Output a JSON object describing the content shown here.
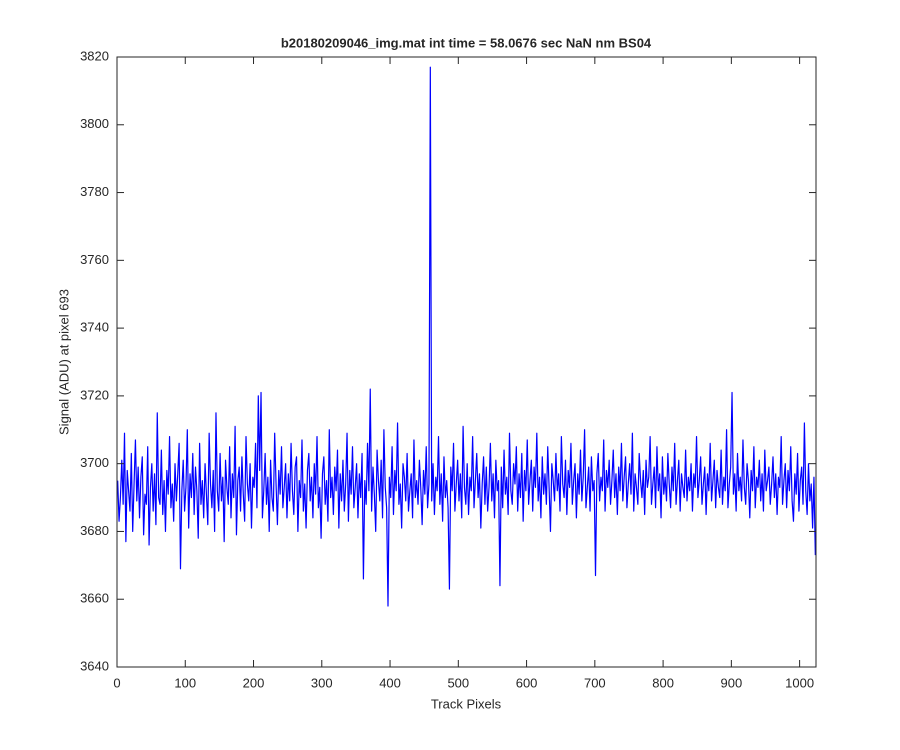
{
  "chart_data": {
    "type": "line",
    "title": "b20180209046_img.mat int time = 58.0676 sec  NaN nm BS04",
    "x_label": "Track Pixels",
    "y_label": "Signal (ADU) at pixel 693",
    "color": "#0000ff",
    "xlim": [
      0,
      1024
    ],
    "ylim": [
      3640,
      3820
    ],
    "xticks": [
      0,
      100,
      200,
      300,
      400,
      500,
      600,
      700,
      800,
      900,
      1000
    ],
    "yticks": [
      3640,
      3660,
      3680,
      3700,
      3720,
      3740,
      3760,
      3780,
      3800,
      3820
    ],
    "x": [
      1,
      3,
      5,
      7,
      9,
      11,
      13,
      15,
      17,
      19,
      21,
      23,
      25,
      27,
      29,
      31,
      33,
      35,
      37,
      39,
      41,
      43,
      45,
      47,
      49,
      51,
      53,
      55,
      57,
      59,
      61,
      63,
      65,
      67,
      69,
      71,
      73,
      75,
      77,
      79,
      81,
      83,
      85,
      87,
      89,
      91,
      93,
      95,
      97,
      99,
      101,
      103,
      105,
      107,
      109,
      111,
      113,
      115,
      117,
      119,
      121,
      123,
      125,
      127,
      129,
      131,
      133,
      135,
      137,
      139,
      141,
      143,
      145,
      147,
      149,
      151,
      153,
      155,
      157,
      159,
      161,
      163,
      165,
      167,
      169,
      171,
      173,
      175,
      177,
      179,
      181,
      183,
      185,
      187,
      189,
      191,
      193,
      195,
      197,
      199,
      201,
      203,
      205,
      207,
      209,
      211,
      213,
      215,
      217,
      219,
      221,
      223,
      225,
      227,
      229,
      231,
      233,
      235,
      237,
      239,
      241,
      243,
      245,
      247,
      249,
      251,
      253,
      255,
      257,
      259,
      261,
      263,
      265,
      267,
      269,
      271,
      273,
      275,
      277,
      279,
      281,
      283,
      285,
      287,
      289,
      291,
      293,
      295,
      297,
      299,
      301,
      303,
      305,
      307,
      309,
      311,
      313,
      315,
      317,
      319,
      321,
      323,
      325,
      327,
      329,
      331,
      333,
      335,
      337,
      339,
      341,
      343,
      345,
      347,
      349,
      351,
      353,
      355,
      357,
      359,
      361,
      363,
      365,
      367,
      369,
      371,
      373,
      375,
      377,
      379,
      381,
      383,
      385,
      387,
      389,
      391,
      393,
      395,
      397,
      399,
      401,
      403,
      405,
      407,
      409,
      411,
      413,
      415,
      417,
      419,
      421,
      423,
      425,
      427,
      429,
      431,
      433,
      435,
      437,
      439,
      441,
      443,
      445,
      447,
      449,
      451,
      453,
      455,
      457,
      459,
      461,
      463,
      465,
      467,
      469,
      471,
      473,
      475,
      477,
      479,
      481,
      483,
      485,
      487,
      489,
      491,
      493,
      495,
      497,
      499,
      501,
      503,
      505,
      507,
      509,
      511,
      513,
      515,
      517,
      519,
      521,
      523,
      525,
      527,
      529,
      531,
      533,
      535,
      537,
      539,
      541,
      543,
      545,
      547,
      549,
      551,
      553,
      555,
      557,
      559,
      561,
      563,
      565,
      567,
      569,
      571,
      573,
      575,
      577,
      579,
      581,
      583,
      585,
      587,
      589,
      591,
      593,
      595,
      597,
      599,
      601,
      603,
      605,
      607,
      609,
      611,
      613,
      615,
      617,
      619,
      621,
      623,
      625,
      627,
      629,
      631,
      633,
      635,
      637,
      639,
      641,
      643,
      645,
      647,
      649,
      651,
      653,
      655,
      657,
      659,
      661,
      663,
      665,
      667,
      669,
      671,
      673,
      675,
      677,
      679,
      681,
      683,
      685,
      687,
      689,
      691,
      693,
      695,
      697,
      699,
      701,
      703,
      705,
      707,
      709,
      711,
      713,
      715,
      717,
      719,
      721,
      723,
      725,
      727,
      729,
      731,
      733,
      735,
      737,
      739,
      741,
      743,
      745,
      747,
      749,
      751,
      753,
      755,
      757,
      759,
      761,
      763,
      765,
      767,
      769,
      771,
      773,
      775,
      777,
      779,
      781,
      783,
      785,
      787,
      789,
      791,
      793,
      795,
      797,
      799,
      801,
      803,
      805,
      807,
      809,
      811,
      813,
      815,
      817,
      819,
      821,
      823,
      825,
      827,
      829,
      831,
      833,
      835,
      837,
      839,
      841,
      843,
      845,
      847,
      849,
      851,
      853,
      855,
      857,
      859,
      861,
      863,
      865,
      867,
      869,
      871,
      873,
      875,
      877,
      879,
      881,
      883,
      885,
      887,
      889,
      891,
      893,
      895,
      897,
      899,
      901,
      903,
      905,
      907,
      909,
      911,
      913,
      915,
      917,
      919,
      921,
      923,
      925,
      927,
      929,
      931,
      933,
      935,
      937,
      939,
      941,
      943,
      945,
      947,
      949,
      951,
      953,
      955,
      957,
      959,
      961,
      963,
      965,
      967,
      969,
      971,
      973,
      975,
      977,
      979,
      981,
      983,
      985,
      987,
      989,
      991,
      993,
      995,
      997,
      999,
      1001,
      1003,
      1005,
      1007,
      1009,
      1011,
      1013,
      1015,
      1017,
      1019,
      1021,
      1023
    ],
    "values": [
      3695,
      3683,
      3690,
      3701,
      3688,
      3709,
      3677,
      3698,
      3692,
      3686,
      3703,
      3680,
      3694,
      3707,
      3689,
      3699,
      3684,
      3696,
      3702,
      3679,
      3691,
      3688,
      3705,
      3676,
      3693,
      3700,
      3686,
      3697,
      3682,
      3715,
      3690,
      3688,
      3704,
      3685,
      3695,
      3680,
      3698,
      3691,
      3708,
      3687,
      3694,
      3683,
      3700,
      3689,
      3697,
      3706,
      3669,
      3692,
      3701,
      3686,
      3693,
      3710,
      3681,
      3697,
      3690,
      3703,
      3685,
      3699,
      3692,
      3678,
      3706,
      3688,
      3695,
      3684,
      3700,
      3691,
      3682,
      3709,
      3694,
      3687,
      3698,
      3680,
      3715,
      3692,
      3686,
      3703,
      3689,
      3696,
      3677,
      3701,
      3693,
      3688,
      3705,
      3684,
      3697,
      3690,
      3711,
      3679,
      3695,
      3699,
      3686,
      3702,
      3691,
      3683,
      3708,
      3694,
      3689,
      3700,
      3681,
      3696,
      3693,
      3706,
      3687,
      3720,
      3698,
      3721,
      3684,
      3692,
      3703,
      3688,
      3696,
      3680,
      3701,
      3690,
      3686,
      3709,
      3694,
      3682,
      3698,
      3691,
      3705,
      3687,
      3693,
      3700,
      3684,
      3697,
      3689,
      3706,
      3692,
      3685,
      3699,
      3702,
      3680,
      3695,
      3690,
      3707,
      3686,
      3694,
      3681,
      3698,
      3703,
      3689,
      3696,
      3684,
      3700,
      3691,
      3708,
      3687,
      3693,
      3678,
      3697,
      3702,
      3688,
      3695,
      3683,
      3710,
      3690,
      3696,
      3685,
      3699,
      3692,
      3704,
      3681,
      3697,
      3689,
      3701,
      3686,
      3694,
      3709,
      3683,
      3698,
      3691,
      3705,
      3687,
      3693,
      3700,
      3684,
      3697,
      3690,
      3703,
      3666,
      3695,
      3688,
      3706,
      3692,
      3722,
      3686,
      3699,
      3691,
      3680,
      3704,
      3695,
      3689,
      3701,
      3684,
      3710,
      3693,
      3687,
      3658,
      3696,
      3690,
      3705,
      3685,
      3698,
      3692,
      3712,
      3688,
      3694,
      3681,
      3700,
      3696,
      3689,
      3703,
      3686,
      3692,
      3697,
      3684,
      3707,
      3690,
      3695,
      3688,
      3701,
      3693,
      3682,
      3698,
      3691,
      3705,
      3687,
      3694,
      3817,
      3689,
      3700,
      3685,
      3696,
      3692,
      3708,
      3688,
      3697,
      3683,
      3702,
      3690,
      3695,
      3687,
      3663,
      3699,
      3692,
      3706,
      3686,
      3694,
      3701,
      3689,
      3697,
      3684,
      3711,
      3693,
      3688,
      3700,
      3685,
      3696,
      3692,
      3708,
      3687,
      3695,
      3703,
      3690,
      3697,
      3681,
      3694,
      3702,
      3688,
      3699,
      3686,
      3693,
      3706,
      3689,
      3697,
      3684,
      3701,
      3692,
      3695,
      3664,
      3699,
      3687,
      3704,
      3691,
      3696,
      3685,
      3709,
      3692,
      3688,
      3700,
      3694,
      3705,
      3686,
      3697,
      3690,
      3703,
      3683,
      3698,
      3692,
      3707,
      3688,
      3695,
      3701,
      3686,
      3699,
      3693,
      3709,
      3689,
      3696,
      3684,
      3702,
      3691,
      3697,
      3688,
      3705,
      3693,
      3680,
      3700,
      3695,
      3689,
      3703,
      3692,
      3697,
      3686,
      3708,
      3694,
      3690,
      3701,
      3685,
      3698,
      3693,
      3706,
      3688,
      3695,
      3700,
      3684,
      3697,
      3691,
      3704,
      3689,
      3696,
      3710,
      3687,
      3693,
      3699,
      3686,
      3702,
      3692,
      3695,
      3667,
      3697,
      3703,
      3689,
      3696,
      3692,
      3707,
      3686,
      3698,
      3693,
      3701,
      3688,
      3695,
      3704,
      3690,
      3697,
      3685,
      3699,
      3692,
      3706,
      3689,
      3696,
      3702,
      3687,
      3694,
      3700,
      3691,
      3709,
      3686,
      3697,
      3693,
      3688,
      3703,
      3695,
      3690,
      3698,
      3685,
      3701,
      3693,
      3696,
      3708,
      3688,
      3694,
      3699,
      3687,
      3705,
      3692,
      3697,
      3684,
      3702,
      3691,
      3696,
      3689,
      3703,
      3694,
      3687,
      3699,
      3692,
      3706,
      3688,
      3695,
      3701,
      3686,
      3697,
      3693,
      3690,
      3704,
      3689,
      3696,
      3692,
      3700,
      3686,
      3697,
      3693,
      3708,
      3690,
      3695,
      3702,
      3688,
      3694,
      3699,
      3685,
      3697,
      3692,
      3706,
      3689,
      3695,
      3701,
      3687,
      3698,
      3693,
      3690,
      3704,
      3688,
      3696,
      3692,
      3710,
      3687,
      3694,
      3699,
      3721,
      3691,
      3697,
      3686,
      3703,
      3692,
      3696,
      3689,
      3707,
      3693,
      3688,
      3700,
      3695,
      3684,
      3698,
      3692,
      3705,
      3687,
      3696,
      3693,
      3701,
      3689,
      3697,
      3686,
      3704,
      3692,
      3695,
      3699,
      3688,
      3694,
      3702,
      3690,
      3697,
      3685,
      3696,
      3693,
      3708,
      3688,
      3695,
      3700,
      3687,
      3698,
      3692,
      3705,
      3689,
      3683,
      3697,
      3691,
      3703,
      3686,
      3695,
      3699,
      3688,
      3712,
      3692,
      3685,
      3700,
      3689,
      3694,
      3681,
      3696,
      3673
    ]
  }
}
